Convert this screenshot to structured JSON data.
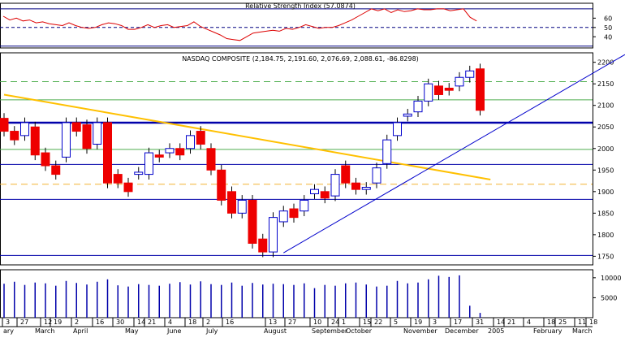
{
  "chart_data": {
    "type": "candlestick",
    "rsi": {
      "title": "Relative Strength Index (57.0874)",
      "yticks": [
        40,
        50,
        60
      ],
      "levels": [
        30,
        50,
        70
      ],
      "values": [
        62,
        58,
        60,
        57,
        58,
        55,
        56,
        54,
        53,
        52,
        55,
        52,
        50,
        49,
        50,
        53,
        55,
        54,
        52,
        48,
        48,
        50,
        53,
        50,
        52,
        53,
        50,
        51,
        52,
        56,
        51,
        48,
        45,
        42,
        38,
        37,
        36,
        40,
        44,
        45,
        46,
        47,
        46,
        49,
        48,
        50,
        53,
        51,
        49,
        50,
        50,
        52,
        55,
        58,
        62,
        66,
        70,
        68,
        70,
        66,
        69,
        67,
        68,
        70,
        69,
        69,
        70,
        70,
        68,
        69,
        70,
        61,
        57
      ],
      "color": "#dd0000",
      "ylim": [
        28,
        76
      ]
    },
    "price": {
      "title": "NASDAQ COMPOSITE (2,184.75, 2,191.60, 2,076.69, 2,088.61, -86.8298)",
      "yticks": [
        1750,
        1800,
        1850,
        1900,
        1950,
        2000,
        2050,
        2100,
        2150,
        2200
      ],
      "ylim": [
        1730,
        2222
      ],
      "candles": [
        {
          "o": 2070,
          "c": 2040
        },
        {
          "o": 2040,
          "c": 2020
        },
        {
          "o": 2030,
          "c": 2060
        },
        {
          "o": 2050,
          "c": 1985
        },
        {
          "o": 1990,
          "c": 1960
        },
        {
          "o": 1960,
          "c": 1940
        },
        {
          "o": 1980,
          "c": 2060
        },
        {
          "o": 2060,
          "c": 2040
        },
        {
          "o": 2055,
          "c": 2000
        },
        {
          "o": 2010,
          "c": 2060
        },
        {
          "o": 2060,
          "c": 1920
        },
        {
          "o": 1940,
          "c": 1920
        },
        {
          "o": 1920,
          "c": 1900
        },
        {
          "o": 1940,
          "c": 1945
        },
        {
          "o": 1940,
          "c": 1990
        },
        {
          "o": 1985,
          "c": 1980
        },
        {
          "o": 1990,
          "c": 2000
        },
        {
          "o": 2000,
          "c": 1985
        },
        {
          "o": 2000,
          "c": 2030
        },
        {
          "o": 2040,
          "c": 2010
        },
        {
          "o": 2000,
          "c": 1950
        },
        {
          "o": 1950,
          "c": 1880
        },
        {
          "o": 1900,
          "c": 1850
        },
        {
          "o": 1850,
          "c": 1880
        },
        {
          "o": 1880,
          "c": 1780
        },
        {
          "o": 1790,
          "c": 1760
        },
        {
          "o": 1760,
          "c": 1840
        },
        {
          "o": 1830,
          "c": 1855
        },
        {
          "o": 1860,
          "c": 1840
        },
        {
          "o": 1855,
          "c": 1880
        },
        {
          "o": 1895,
          "c": 1905
        },
        {
          "o": 1900,
          "c": 1885
        },
        {
          "o": 1890,
          "c": 1940
        },
        {
          "o": 1960,
          "c": 1920
        },
        {
          "o": 1920,
          "c": 1905
        },
        {
          "o": 1905,
          "c": 1910
        },
        {
          "o": 1920,
          "c": 1955
        },
        {
          "o": 1965,
          "c": 2020
        },
        {
          "o": 2030,
          "c": 2060
        },
        {
          "o": 2075,
          "c": 2080
        },
        {
          "o": 2085,
          "c": 2110
        },
        {
          "o": 2110,
          "c": 2150
        },
        {
          "o": 2145,
          "c": 2125
        },
        {
          "o": 2140,
          "c": 2135
        },
        {
          "o": 2145,
          "c": 2165
        },
        {
          "o": 2165,
          "c": 2180
        },
        {
          "o": 2184.75,
          "c": 2088.61
        }
      ],
      "horizontal_lines": [
        {
          "value": 1752,
          "color": "#0000aa",
          "width": 1
        },
        {
          "value": 1882,
          "color": "#0000aa",
          "width": 1
        },
        {
          "value": 1917,
          "color": "#f2b233",
          "width": 1,
          "dash": true
        },
        {
          "value": 1963,
          "color": "#0000aa",
          "width": 1
        },
        {
          "value": 1998,
          "color": "#4fae4f",
          "width": 1
        },
        {
          "value": 2060,
          "color": "#0000aa",
          "width": 2.5
        },
        {
          "value": 2113,
          "color": "#4fae4f",
          "width": 1
        },
        {
          "value": 2155,
          "color": "#4fae4f",
          "width": 1,
          "dash": true
        }
      ],
      "trendlines": [
        {
          "from": [
            0,
            2125
          ],
          "to": [
            47,
            1928
          ],
          "color": "#ffc000",
          "width": 2
        },
        {
          "from": [
            27,
            1758
          ],
          "to": [
            60,
            2218
          ],
          "color": "#0000cc",
          "width": 1
        }
      ],
      "up_color": "#0000cc",
      "down_color": "#ee0000"
    },
    "volume": {
      "yticks": [
        5000,
        10000
      ],
      "ylim": [
        0,
        12000
      ],
      "values": [
        8500,
        9000,
        8200,
        8800,
        8600,
        8000,
        9200,
        8700,
        8300,
        9000,
        9600,
        8100,
        7800,
        8400,
        8200,
        8000,
        8500,
        8900,
        8300,
        9100,
        8400,
        8200,
        8800,
        8000,
        8700,
        8300,
        8500,
        8400,
        8200,
        8600,
        7400,
        8200,
        8000,
        8600,
        8800,
        8300,
        7800,
        8000,
        9200,
        8600,
        8800,
        9600,
        10500,
        10200,
        10600,
        3000,
        1200
      ],
      "color": "#0000aa"
    },
    "x_axis": {
      "day_labels": [
        {
          "label": "3",
          "x": 3
        },
        {
          "label": "27",
          "x": 21
        },
        {
          "label": "12",
          "x": 50
        },
        {
          "label": "19",
          "x": 62
        },
        {
          "label": "2",
          "x": 88
        },
        {
          "label": "16",
          "x": 114
        },
        {
          "label": "30",
          "x": 139
        },
        {
          "label": "14",
          "x": 165
        },
        {
          "label": "21",
          "x": 178
        },
        {
          "label": "4",
          "x": 203
        },
        {
          "label": "18",
          "x": 228
        },
        {
          "label": "2",
          "x": 250
        },
        {
          "label": "16",
          "x": 274
        },
        {
          "label": "13",
          "x": 327
        },
        {
          "label": "27",
          "x": 351
        },
        {
          "label": "10",
          "x": 382
        },
        {
          "label": "24",
          "x": 404
        },
        {
          "label": "1",
          "x": 417
        },
        {
          "label": "15",
          "x": 443
        },
        {
          "label": "22",
          "x": 457
        },
        {
          "label": "5",
          "x": 481
        },
        {
          "label": "19",
          "x": 506
        },
        {
          "label": "3",
          "x": 529
        },
        {
          "label": "17",
          "x": 555
        },
        {
          "label": "31",
          "x": 582
        },
        {
          "label": "14",
          "x": 608
        },
        {
          "label": "21",
          "x": 621
        },
        {
          "label": "4",
          "x": 645
        },
        {
          "label": "18",
          "x": 670
        },
        {
          "label": "25",
          "x": 684
        },
        {
          "label": "11",
          "x": 708
        },
        {
          "label": "18",
          "x": 722
        }
      ],
      "month_labels": [
        {
          "label": "ary",
          "x": 4
        },
        {
          "label": "March",
          "x": 43
        },
        {
          "label": "April",
          "x": 90
        },
        {
          "label": "May",
          "x": 154
        },
        {
          "label": "June",
          "x": 206
        },
        {
          "label": "July",
          "x": 254
        },
        {
          "label": "August",
          "x": 325
        },
        {
          "label": "September",
          "x": 384
        },
        {
          "label": "October",
          "x": 426
        },
        {
          "label": "November",
          "x": 497
        },
        {
          "label": "December",
          "x": 548
        },
        {
          "label": "2005",
          "x": 601
        },
        {
          "label": "February",
          "x": 657
        },
        {
          "label": "March",
          "x": 705
        }
      ]
    }
  }
}
